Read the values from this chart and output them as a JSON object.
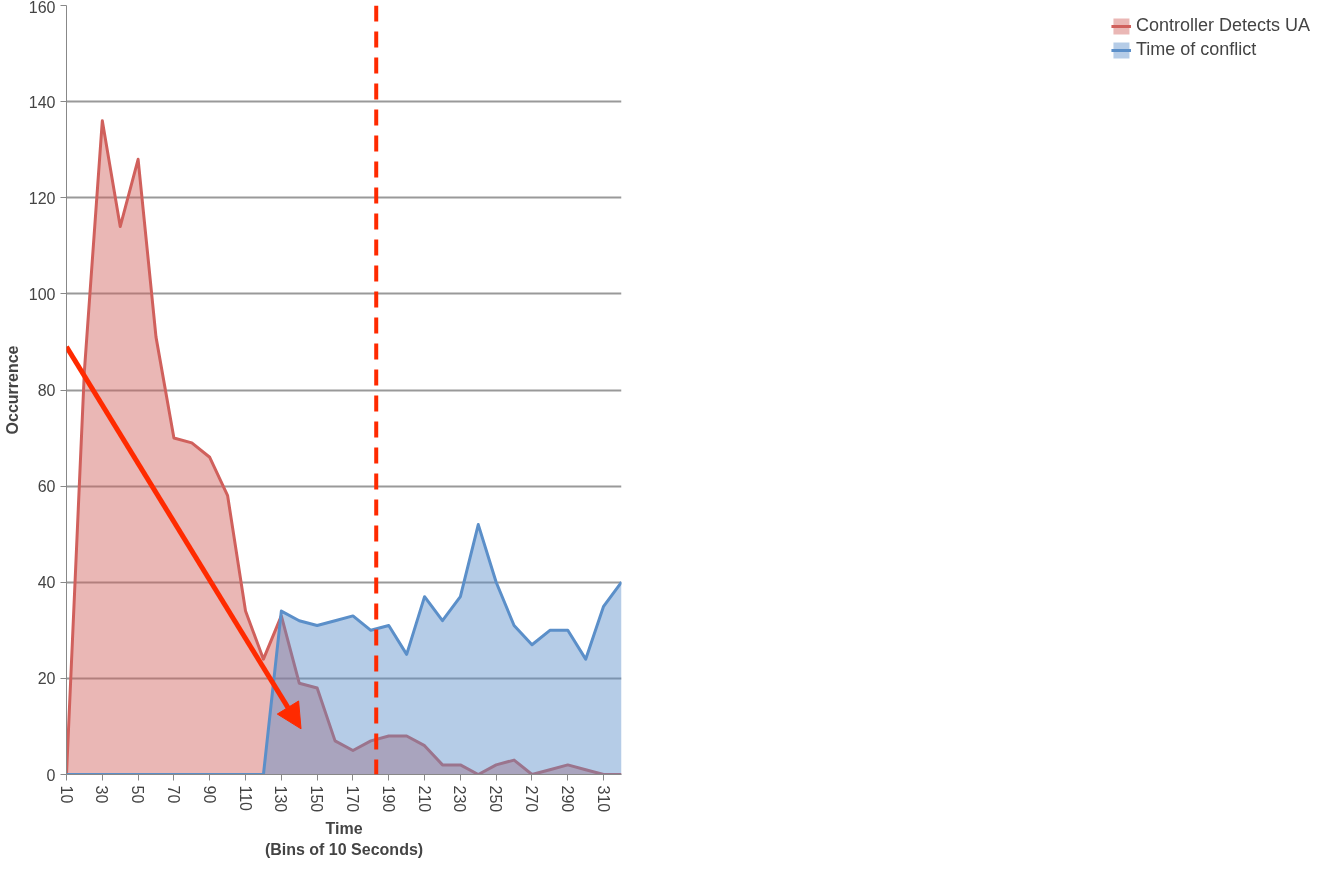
{
  "chart_data": {
    "type": "area",
    "xlabel": "Time\n(Bins of 10 Seconds)",
    "ylabel": "Occurrence",
    "x": [
      10,
      20,
      30,
      40,
      50,
      60,
      70,
      80,
      90,
      100,
      110,
      120,
      130,
      140,
      150,
      160,
      170,
      180,
      190,
      200,
      210,
      220,
      230,
      240,
      250,
      260,
      270,
      280,
      290,
      300,
      310,
      320
    ],
    "series": [
      {
        "name": "Controller Detects UA",
        "color": "#d0605c",
        "values": [
          0,
          84,
          136,
          114,
          128,
          91,
          70,
          69,
          66,
          58,
          34,
          24,
          33,
          19,
          18,
          7,
          5,
          7,
          8,
          8,
          6,
          2,
          2,
          0,
          2,
          3,
          0,
          1,
          2,
          1,
          0,
          0
        ]
      },
      {
        "name": "Time of conflict",
        "color": "#5b8fc9",
        "values": [
          0,
          0,
          0,
          0,
          0,
          0,
          0,
          0,
          0,
          0,
          0,
          0,
          34,
          32,
          31,
          32,
          33,
          30,
          31,
          25,
          37,
          32,
          37,
          52,
          40,
          31,
          27,
          30,
          30,
          24,
          35,
          40
        ]
      }
    ],
    "xlim": [
      10,
      320
    ],
    "xticks": [
      10,
      30,
      50,
      70,
      90,
      110,
      130,
      150,
      170,
      190,
      210,
      230,
      250,
      270,
      290,
      310
    ],
    "ylim": [
      0,
      160
    ],
    "yticks": [
      0,
      20,
      40,
      60,
      80,
      100,
      120,
      140,
      160
    ],
    "grid": "y",
    "legend": "right",
    "ref_lines": [
      {
        "axis": "x",
        "value": 183,
        "color": "#ff2a00",
        "line_style": "dashed"
      }
    ]
  }
}
